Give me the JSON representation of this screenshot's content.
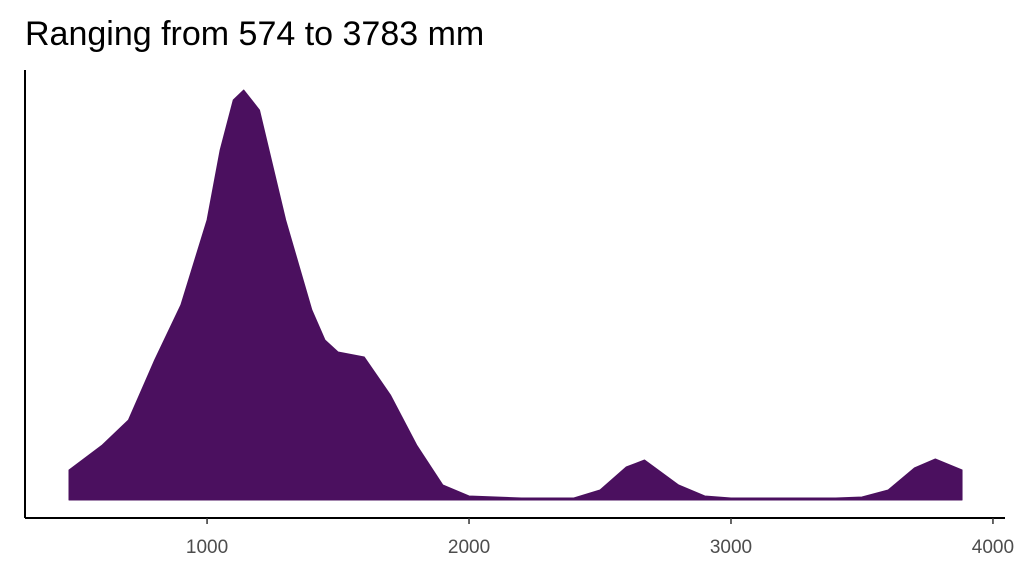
{
  "chart_data": {
    "type": "area",
    "title": "Ranging from 574 to 3783 mm",
    "x": [
      473,
      600,
      700,
      800,
      900,
      1000,
      1050,
      1100,
      1140,
      1200,
      1300,
      1400,
      1450,
      1500,
      1600,
      1700,
      1800,
      1900,
      2000,
      2200,
      2400,
      2500,
      2600,
      2670,
      2800,
      2900,
      3000,
      3200,
      3400,
      3500,
      3600,
      3700,
      3780,
      3882
    ],
    "values": [
      0.00012,
      0.00022,
      0.00032,
      0.00056,
      0.00078,
      0.00112,
      0.0014,
      0.0016,
      0.00164,
      0.00156,
      0.00112,
      0.00076,
      0.00064,
      0.000592,
      0.000572,
      0.00042,
      0.00022,
      6e-05,
      1.6e-05,
      8e-06,
      8e-06,
      4e-05,
      0.000132,
      0.00016,
      6e-05,
      1.6e-05,
      8e-06,
      8e-06,
      8e-06,
      1.2e-05,
      4e-05,
      0.000128,
      0.000164,
      0.00012
    ],
    "color": "#4b105f",
    "xlim": [
      305,
      4046
    ],
    "xticks": [
      1000,
      2000,
      3000,
      4000
    ],
    "ylim": [
      -7.2e-05,
      0.00172
    ]
  }
}
